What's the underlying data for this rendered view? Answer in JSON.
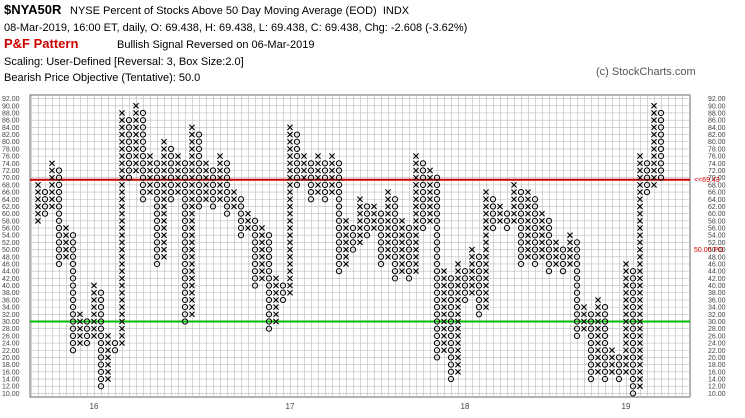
{
  "chart_data": {
    "type": "point-and-figure",
    "symbol": "$NYA50R",
    "title": "NYSE Percent of Stocks Above 50 Day Moving Average (EOD)  INDX",
    "subtitle": "08-Mar-2019, 16:00 ET, daily, O: 69.438, H: 69.438, L: 69.438, C: 69.438, Chg: -2.608 (-3.62%)",
    "pattern_label": "P&F Pattern",
    "pattern": "Bullish Signal Reversed on 06-Mar-2019",
    "scaling": "Scaling: User-Defined [Reversal: 3, Box Size:2.0]",
    "objective": "Bearish Price Objective (Tentative): 50.0",
    "copyright": "(c) StockCharts.com",
    "box_size": 2,
    "ylim": [
      9,
      93
    ],
    "yticks": [
      {
        "value": 92,
        "label": "92.00"
      },
      {
        "value": 90,
        "label": "90.00"
      },
      {
        "value": 88,
        "label": "88.00"
      },
      {
        "value": 86,
        "label": "86.00"
      },
      {
        "value": 84,
        "label": "84.00"
      },
      {
        "value": 82,
        "label": "82.00"
      },
      {
        "value": 80,
        "label": "80.00"
      },
      {
        "value": 78,
        "label": "78.00"
      },
      {
        "value": 76,
        "label": "76.00"
      },
      {
        "value": 74,
        "label": "74.00"
      },
      {
        "value": 72,
        "label": "72.00"
      },
      {
        "value": 70,
        "label": "70.00"
      },
      {
        "value": 68,
        "label": "68.00"
      },
      {
        "value": 66,
        "label": "66.00"
      },
      {
        "value": 64,
        "label": "64.00"
      },
      {
        "value": 62,
        "label": "62.00"
      },
      {
        "value": 60,
        "label": "60.00"
      },
      {
        "value": 58,
        "label": "58.00"
      },
      {
        "value": 56,
        "label": "56.00"
      },
      {
        "value": 54,
        "label": "54.00"
      },
      {
        "value": 52,
        "label": "52.00"
      },
      {
        "value": 50,
        "label": "50.00"
      },
      {
        "value": 48,
        "label": "48.00"
      },
      {
        "value": 46,
        "label": "46.00"
      },
      {
        "value": 44,
        "label": "44.00"
      },
      {
        "value": 42,
        "label": "42.00"
      },
      {
        "value": 40,
        "label": "40.00"
      },
      {
        "value": 38,
        "label": "38.00"
      },
      {
        "value": 36,
        "label": "36.00"
      },
      {
        "value": 34,
        "label": "34.00"
      },
      {
        "value": 32,
        "label": "32.00"
      },
      {
        "value": 30,
        "label": "30.00"
      },
      {
        "value": 28,
        "label": "28.00"
      },
      {
        "value": 26,
        "label": "26.00"
      },
      {
        "value": 24,
        "label": "24.00"
      },
      {
        "value": 22,
        "label": "22.00"
      },
      {
        "value": 20,
        "label": "20.00"
      },
      {
        "value": 18,
        "label": "18.00"
      },
      {
        "value": 16,
        "label": "16.00"
      },
      {
        "value": 14,
        "label": "14.00"
      },
      {
        "value": 12,
        "label": "12.00"
      },
      {
        "value": 10,
        "label": "10.00"
      }
    ],
    "price_line": {
      "value": 69.43,
      "label": "<<69.43",
      "color": "#cc0000"
    },
    "objective_line": {
      "value": 50,
      "label": "50.00 PO",
      "color": "#cc0000"
    },
    "support_line": {
      "value": 30,
      "color": "#00bb00"
    },
    "year_labels": [
      {
        "label": "16",
        "column": 8
      },
      {
        "label": "17",
        "column": 36
      },
      {
        "label": "18",
        "column": 61
      },
      {
        "label": "19",
        "column": 84
      }
    ],
    "columns": [
      {
        "type": "X",
        "low": 58,
        "high": 68
      },
      {
        "type": "O",
        "low": 60,
        "high": 66
      },
      {
        "type": "X",
        "low": 62,
        "high": 74
      },
      {
        "type": "O",
        "low": 46,
        "high": 72
      },
      {
        "type": "X",
        "low": 48,
        "high": 56
      },
      {
        "type": "O",
        "low": 22,
        "high": 54
      },
      {
        "type": "X",
        "low": 24,
        "high": 32
      },
      {
        "type": "O",
        "low": 24,
        "high": 30
      },
      {
        "type": "X",
        "low": 26,
        "high": 40
      },
      {
        "type": "O",
        "low": 12,
        "high": 38
      },
      {
        "type": "X",
        "low": 14,
        "high": 26
      },
      {
        "type": "O",
        "low": 22,
        "high": 24
      },
      {
        "type": "X",
        "low": 24,
        "high": 88
      },
      {
        "type": "O",
        "low": 70,
        "high": 86
      },
      {
        "type": "X",
        "low": 72,
        "high": 90
      },
      {
        "type": "O",
        "low": 64,
        "high": 88
      },
      {
        "type": "X",
        "low": 66,
        "high": 76
      },
      {
        "type": "O",
        "low": 46,
        "high": 74
      },
      {
        "type": "X",
        "low": 48,
        "high": 80
      },
      {
        "type": "O",
        "low": 64,
        "high": 78
      },
      {
        "type": "X",
        "low": 66,
        "high": 76
      },
      {
        "type": "O",
        "low": 30,
        "high": 74
      },
      {
        "type": "X",
        "low": 32,
        "high": 84
      },
      {
        "type": "O",
        "low": 62,
        "high": 82
      },
      {
        "type": "X",
        "low": 64,
        "high": 74
      },
      {
        "type": "O",
        "low": 62,
        "high": 72
      },
      {
        "type": "X",
        "low": 64,
        "high": 76
      },
      {
        "type": "O",
        "low": 60,
        "high": 74
      },
      {
        "type": "X",
        "low": 62,
        "high": 66
      },
      {
        "type": "O",
        "low": 54,
        "high": 64
      },
      {
        "type": "X",
        "low": 56,
        "high": 60
      },
      {
        "type": "O",
        "low": 40,
        "high": 58
      },
      {
        "type": "X",
        "low": 42,
        "high": 56
      },
      {
        "type": "O",
        "low": 28,
        "high": 54
      },
      {
        "type": "X",
        "low": 30,
        "high": 42
      },
      {
        "type": "O",
        "low": 36,
        "high": 40
      },
      {
        "type": "X",
        "low": 38,
        "high": 84
      },
      {
        "type": "O",
        "low": 68,
        "high": 82
      },
      {
        "type": "X",
        "low": 70,
        "high": 76
      },
      {
        "type": "O",
        "low": 64,
        "high": 74
      },
      {
        "type": "X",
        "low": 66,
        "high": 76
      },
      {
        "type": "O",
        "low": 64,
        "high": 74
      },
      {
        "type": "X",
        "low": 66,
        "high": 76
      },
      {
        "type": "O",
        "low": 44,
        "high": 74
      },
      {
        "type": "X",
        "low": 46,
        "high": 58
      },
      {
        "type": "O",
        "low": 50,
        "high": 56
      },
      {
        "type": "X",
        "low": 52,
        "high": 64
      },
      {
        "type": "O",
        "low": 54,
        "high": 62
      },
      {
        "type": "X",
        "low": 56,
        "high": 62
      },
      {
        "type": "O",
        "low": 46,
        "high": 60
      },
      {
        "type": "X",
        "low": 48,
        "high": 66
      },
      {
        "type": "O",
        "low": 42,
        "high": 64
      },
      {
        "type": "X",
        "low": 44,
        "high": 58
      },
      {
        "type": "O",
        "low": 42,
        "high": 56
      },
      {
        "type": "X",
        "low": 44,
        "high": 76
      },
      {
        "type": "O",
        "low": 56,
        "high": 74
      },
      {
        "type": "X",
        "low": 58,
        "high": 72
      },
      {
        "type": "O",
        "low": 20,
        "high": 70
      },
      {
        "type": "X",
        "low": 22,
        "high": 44
      },
      {
        "type": "O",
        "low": 14,
        "high": 42
      },
      {
        "type": "X",
        "low": 16,
        "high": 46
      },
      {
        "type": "O",
        "low": 36,
        "high": 44
      },
      {
        "type": "X",
        "low": 38,
        "high": 50
      },
      {
        "type": "O",
        "low": 32,
        "high": 48
      },
      {
        "type": "X",
        "low": 34,
        "high": 66
      },
      {
        "type": "O",
        "low": 56,
        "high": 64
      },
      {
        "type": "X",
        "low": 58,
        "high": 62
      },
      {
        "type": "O",
        "low": 56,
        "high": 60
      },
      {
        "type": "X",
        "low": 58,
        "high": 68
      },
      {
        "type": "O",
        "low": 46,
        "high": 66
      },
      {
        "type": "X",
        "low": 48,
        "high": 66
      },
      {
        "type": "O",
        "low": 46,
        "high": 64
      },
      {
        "type": "X",
        "low": 48,
        "high": 60
      },
      {
        "type": "O",
        "low": 44,
        "high": 58
      },
      {
        "type": "X",
        "low": 46,
        "high": 52
      },
      {
        "type": "O",
        "low": 44,
        "high": 50
      },
      {
        "type": "X",
        "low": 46,
        "high": 54
      },
      {
        "type": "O",
        "low": 26,
        "high": 52
      },
      {
        "type": "X",
        "low": 28,
        "high": 34
      },
      {
        "type": "O",
        "low": 14,
        "high": 32
      },
      {
        "type": "X",
        "low": 16,
        "high": 36
      },
      {
        "type": "O",
        "low": 14,
        "high": 34
      },
      {
        "type": "X",
        "low": 16,
        "high": 22
      },
      {
        "type": "O",
        "low": 14,
        "high": 20
      },
      {
        "type": "X",
        "low": 16,
        "high": 46
      },
      {
        "type": "O",
        "low": 10,
        "high": 44
      },
      {
        "type": "X",
        "low": 12,
        "high": 76
      },
      {
        "type": "O",
        "low": 66,
        "high": 74
      },
      {
        "type": "X",
        "low": 68,
        "high": 90
      },
      {
        "type": "O",
        "low": 70,
        "high": 88
      }
    ]
  }
}
